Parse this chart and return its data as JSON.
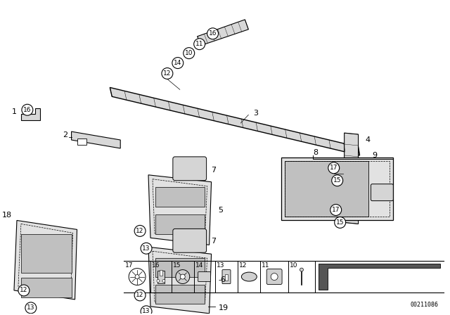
{
  "bg_color": "#ffffff",
  "diagram_id": "00211086",
  "lc": "#000000",
  "strip_fill": "#d8d8d8",
  "panel_fill": "#e2e2e2",
  "dark_fill": "#555555"
}
